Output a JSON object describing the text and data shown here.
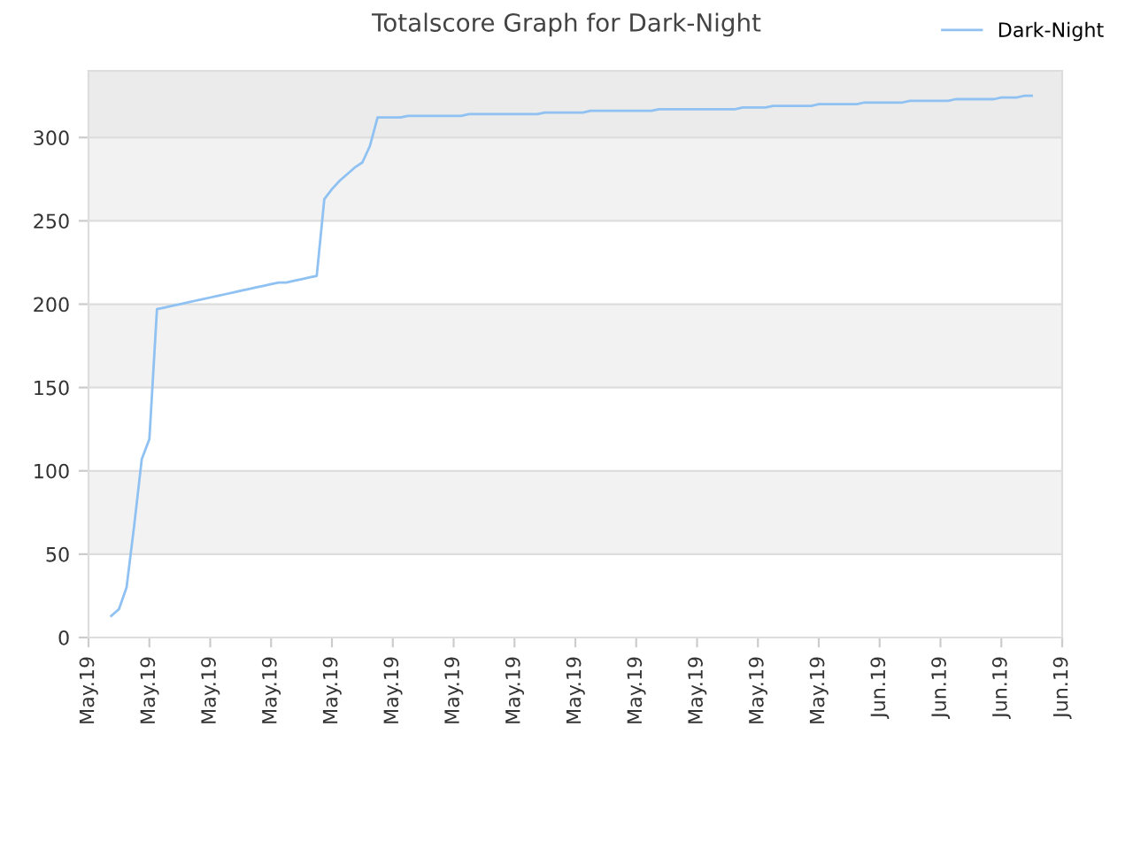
{
  "chart_data": {
    "type": "line",
    "title": "Totalscore Graph for Dark-Night",
    "categories": [
      "May.19",
      null,
      null,
      null,
      null,
      null,
      null,
      null,
      "May.19",
      null,
      null,
      null,
      null,
      null,
      null,
      null,
      "May.19",
      null,
      null,
      null,
      null,
      null,
      null,
      null,
      "May.19",
      null,
      null,
      null,
      null,
      null,
      null,
      null,
      "May.19",
      null,
      null,
      null,
      null,
      null,
      null,
      null,
      "May.19",
      null,
      null,
      null,
      null,
      null,
      null,
      null,
      "May.19",
      null,
      null,
      null,
      null,
      null,
      null,
      null,
      "May.19",
      null,
      null,
      null,
      null,
      null,
      null,
      null,
      "May.19",
      null,
      null,
      null,
      null,
      null,
      null,
      null,
      "May.19",
      null,
      null,
      null,
      null,
      null,
      null,
      null,
      "May.19",
      null,
      null,
      null,
      null,
      null,
      null,
      null,
      "May.19",
      null,
      null,
      null,
      null,
      null,
      null,
      null,
      "May.19",
      null,
      null,
      null,
      null,
      null,
      null,
      null,
      "Jun.19",
      null,
      null,
      null,
      null,
      null,
      null,
      null,
      "Jun.19",
      null,
      null,
      null,
      null,
      null,
      null,
      null,
      "Jun.19",
      null,
      null,
      null,
      null,
      null,
      null,
      null,
      "Jun.19"
    ],
    "series": [
      {
        "name": "Dark-Night",
        "color": "#8fc1f2",
        "values": [
          null,
          null,
          null,
          13,
          17,
          30,
          67,
          107,
          119,
          197,
          198,
          199,
          200,
          201,
          202,
          203,
          204,
          205,
          206,
          207,
          208,
          209,
          210,
          211,
          212,
          213,
          213,
          214,
          215,
          216,
          217,
          263,
          269,
          274,
          278,
          282,
          285,
          295,
          312,
          312,
          312,
          312,
          313,
          313,
          313,
          313,
          313,
          313,
          313,
          313,
          314,
          314,
          314,
          314,
          314,
          314,
          314,
          314,
          314,
          314,
          315,
          315,
          315,
          315,
          315,
          315,
          316,
          316,
          316,
          316,
          316,
          316,
          316,
          316,
          316,
          317,
          317,
          317,
          317,
          317,
          317,
          317,
          317,
          317,
          317,
          317,
          318,
          318,
          318,
          318,
          319,
          319,
          319,
          319,
          319,
          319,
          320,
          320,
          320,
          320,
          320,
          320,
          321,
          321,
          321,
          321,
          321,
          321,
          322,
          322,
          322,
          322,
          322,
          322,
          323,
          323,
          323,
          323,
          323,
          323,
          324,
          324,
          324,
          325,
          325,
          null,
          null,
          null,
          null
        ]
      }
    ],
    "ylim": [
      0,
      340
    ],
    "yticks": [
      0,
      50,
      100,
      150,
      200,
      250,
      300
    ],
    "bands": [
      {
        "axis": "y",
        "from": 50,
        "to": 100,
        "color": "#f2f2f2"
      },
      {
        "axis": "y",
        "from": 150,
        "to": 200,
        "color": "#f2f2f2"
      },
      {
        "axis": "y",
        "from": 250,
        "to": 300,
        "color": "#f2f2f2"
      },
      {
        "axis": "y",
        "from": 300,
        "to": 340,
        "color": "#ebebeb"
      }
    ],
    "grid": "y",
    "legend": "top right",
    "marker": "none",
    "line_style": "solid"
  }
}
